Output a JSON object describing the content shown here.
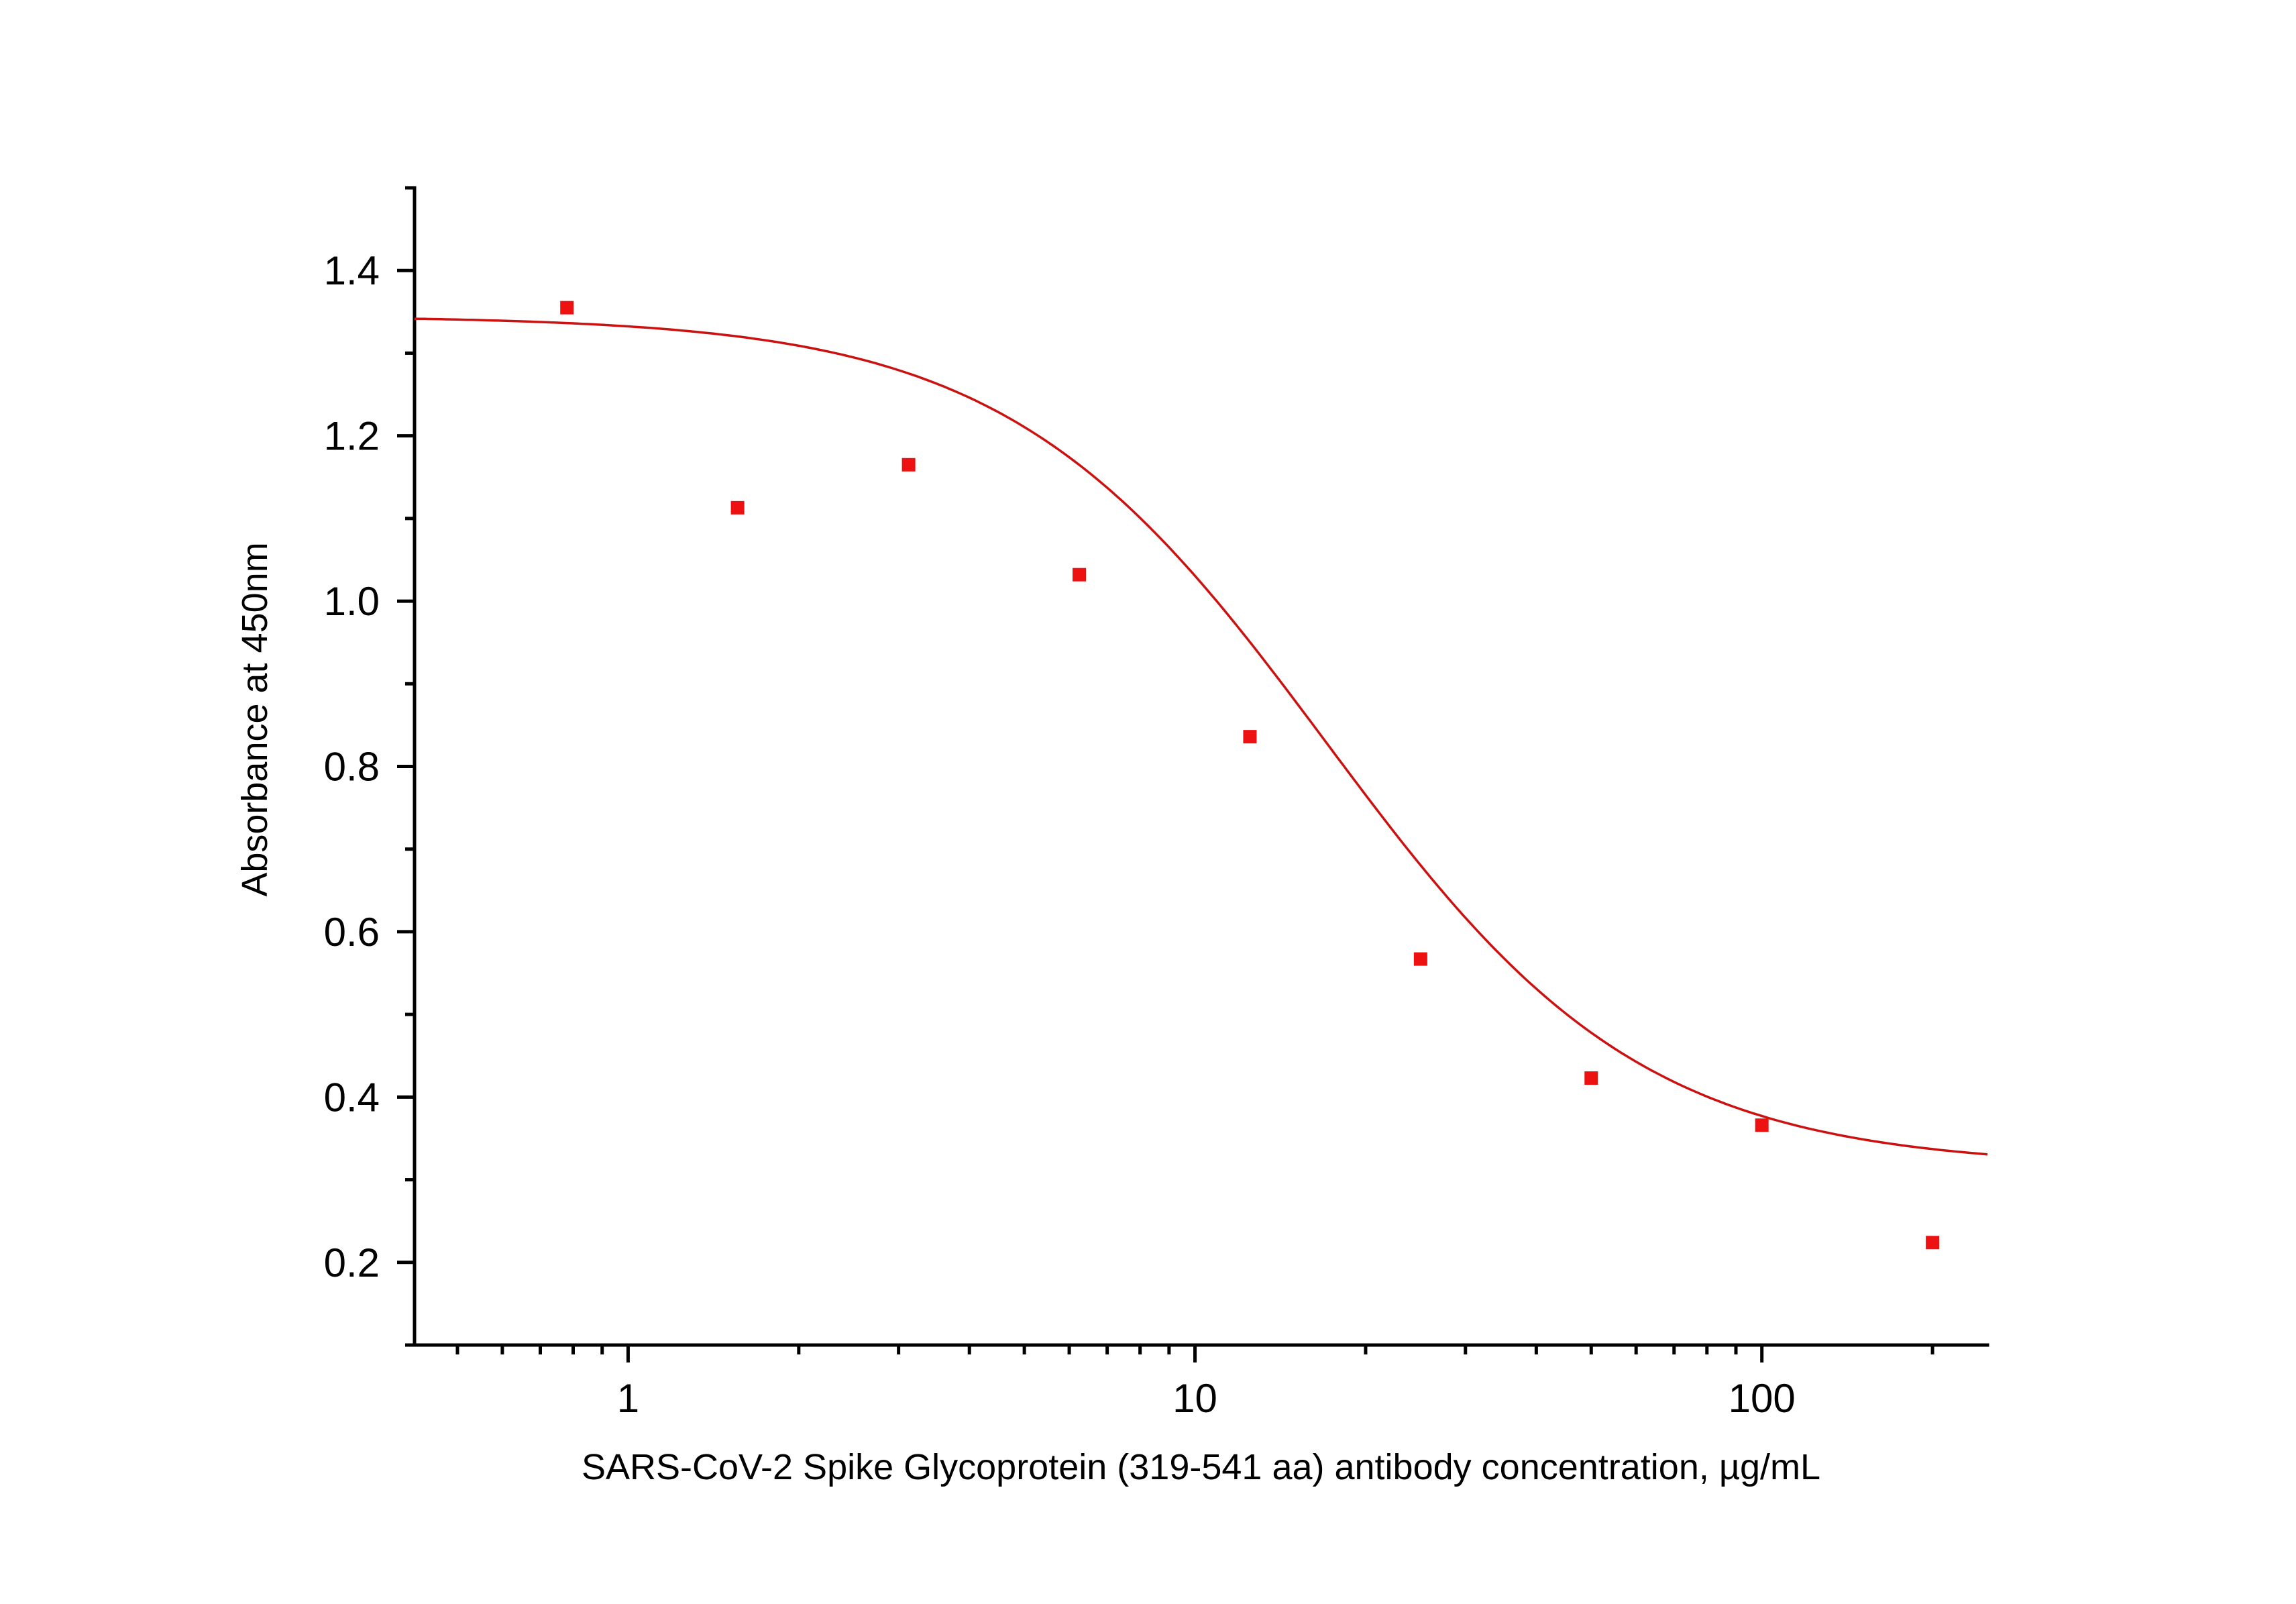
{
  "chart_data": {
    "type": "scatter",
    "xlabel": "SARS-CoV-2 Spike Glycoprotein (319-541 aa)  antibody concentration, µg/mL",
    "ylabel": "Absorbance at 450nm",
    "x_scale": "log",
    "xlim": [
      0.42,
      250
    ],
    "ylim": [
      0.1,
      1.5
    ],
    "x_ticks": [
      1,
      10,
      100
    ],
    "x_tick_labels": [
      "1",
      "10",
      "100"
    ],
    "y_ticks": [
      0.2,
      0.4,
      0.6,
      0.8,
      1.0,
      1.2,
      1.4
    ],
    "y_tick_labels": [
      "0.2",
      "0.4",
      "0.6",
      "0.8",
      "1.0",
      "1.2",
      "1.4"
    ],
    "grid": false,
    "legend": "none",
    "series": [
      {
        "type": "scatter",
        "color": "#ee1111",
        "x": [
          0.78,
          1.56,
          3.125,
          6.25,
          12.5,
          25,
          50,
          100,
          200
        ],
        "y": [
          1.355,
          1.113,
          1.165,
          1.032,
          0.836,
          0.567,
          0.423,
          0.366,
          0.224
        ]
      }
    ],
    "fit": {
      "model": "four-parameter-logistic",
      "color": "#cc1111",
      "top": 1.345,
      "bottom": 0.315,
      "ec50": 17,
      "hill": 1.55
    }
  }
}
